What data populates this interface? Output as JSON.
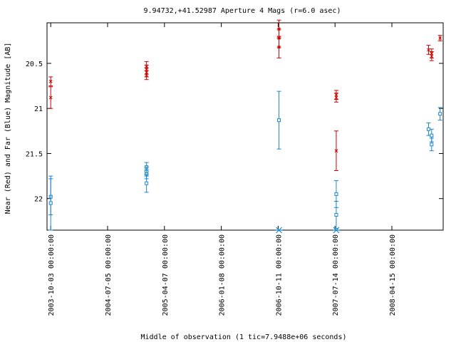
{
  "chart_data": {
    "type": "scatter",
    "title": "9.94732,+41.52987   Aperture 4 Mags (r=6.0 asec)",
    "xlabel": "Middle of observation (1 tic=7.9488e+06 seconds)",
    "ylabel": "Near (Red) and Far (Blue) Magnitude [AB]",
    "y_inverted": true,
    "ylim": [
      22.35,
      20.05
    ],
    "xlim": [
      "2003-09-15",
      "2008-12-20"
    ],
    "y_ticks": [
      20.5,
      21,
      21.5,
      22
    ],
    "y_tick_labels": [
      "20.5",
      "21",
      "21.5",
      "22"
    ],
    "x_ticks": [
      "2003-10-03 00:00:00",
      "2004-07-05 00:00:00",
      "2005-04-07 00:00:00",
      "2006-01-08 00:00:00",
      "2006-10-11 00:00:00",
      "2007-07-14 00:00:00",
      "2008-04-15 00:00:00"
    ],
    "series": [
      {
        "name": "Near (Red)",
        "color": "#cc0000",
        "marker": "x",
        "points": [
          {
            "x": "2003-10-03",
            "y": 20.7,
            "err": 0.05
          },
          {
            "x": "2003-10-03",
            "y": 20.88,
            "err": 0.12
          },
          {
            "x": "2005-01-10",
            "y": 20.53,
            "err": 0.05
          },
          {
            "x": "2005-01-10",
            "y": 20.57,
            "err": 0.05
          },
          {
            "x": "2005-01-10",
            "y": 20.6,
            "err": 0.05
          },
          {
            "x": "2005-01-10",
            "y": 20.63,
            "err": 0.05
          },
          {
            "x": "2006-10-15",
            "y": 20.12,
            "err": 0.1
          },
          {
            "x": "2006-10-15",
            "y": 20.22,
            "err": 0.1
          },
          {
            "x": "2006-10-15",
            "y": 20.32,
            "err": 0.12
          },
          {
            "x": "2007-07-20",
            "y": 20.85,
            "err": 0.05
          },
          {
            "x": "2007-07-20",
            "y": 20.88,
            "err": 0.05
          },
          {
            "x": "2007-07-20",
            "y": 21.47,
            "err": 0.22
          },
          {
            "x": "2008-10-10",
            "y": 20.35,
            "err": 0.05
          },
          {
            "x": "2008-10-25",
            "y": 20.39,
            "err": 0.05
          },
          {
            "x": "2008-10-25",
            "y": 20.42,
            "err": 0.05
          },
          {
            "x": "2008-12-05",
            "y": 20.22,
            "err": 0.03
          }
        ]
      },
      {
        "name": "Far (Blue)",
        "color": "#1a86d0",
        "marker": "square",
        "points": [
          {
            "x": "2003-10-03",
            "y": 21.98,
            "err": 0.2
          },
          {
            "x": "2003-10-03",
            "y": 22.05,
            "err": 0.3
          },
          {
            "x": "2005-01-10",
            "y": 21.65,
            "err": 0.05
          },
          {
            "x": "2005-01-10",
            "y": 21.7,
            "err": 0.05
          },
          {
            "x": "2005-01-10",
            "y": 21.73,
            "err": 0.05
          },
          {
            "x": "2005-01-10",
            "y": 21.83,
            "err": 0.1
          },
          {
            "x": "2006-10-15",
            "y": 21.13,
            "err": 0.32
          },
          {
            "x": "2007-07-20",
            "y": 21.95,
            "err": 0.15
          },
          {
            "x": "2007-07-20",
            "y": 22.18,
            "err": 0.15
          },
          {
            "x": "2008-10-10",
            "y": 21.23,
            "err": 0.07
          },
          {
            "x": "2008-10-25",
            "y": 21.3,
            "err": 0.07
          },
          {
            "x": "2008-10-25",
            "y": 21.4,
            "err": 0.07
          },
          {
            "x": "2008-12-05",
            "y": 21.06,
            "err": 0.07
          }
        ]
      }
    ],
    "lower_limits": {
      "color": "#1a86d0",
      "marker": "asterisk",
      "points": [
        {
          "x": "2006-10-15",
          "y": 22.35
        },
        {
          "x": "2007-07-20",
          "y": 22.35
        }
      ]
    },
    "grid": false,
    "legend": "none"
  }
}
